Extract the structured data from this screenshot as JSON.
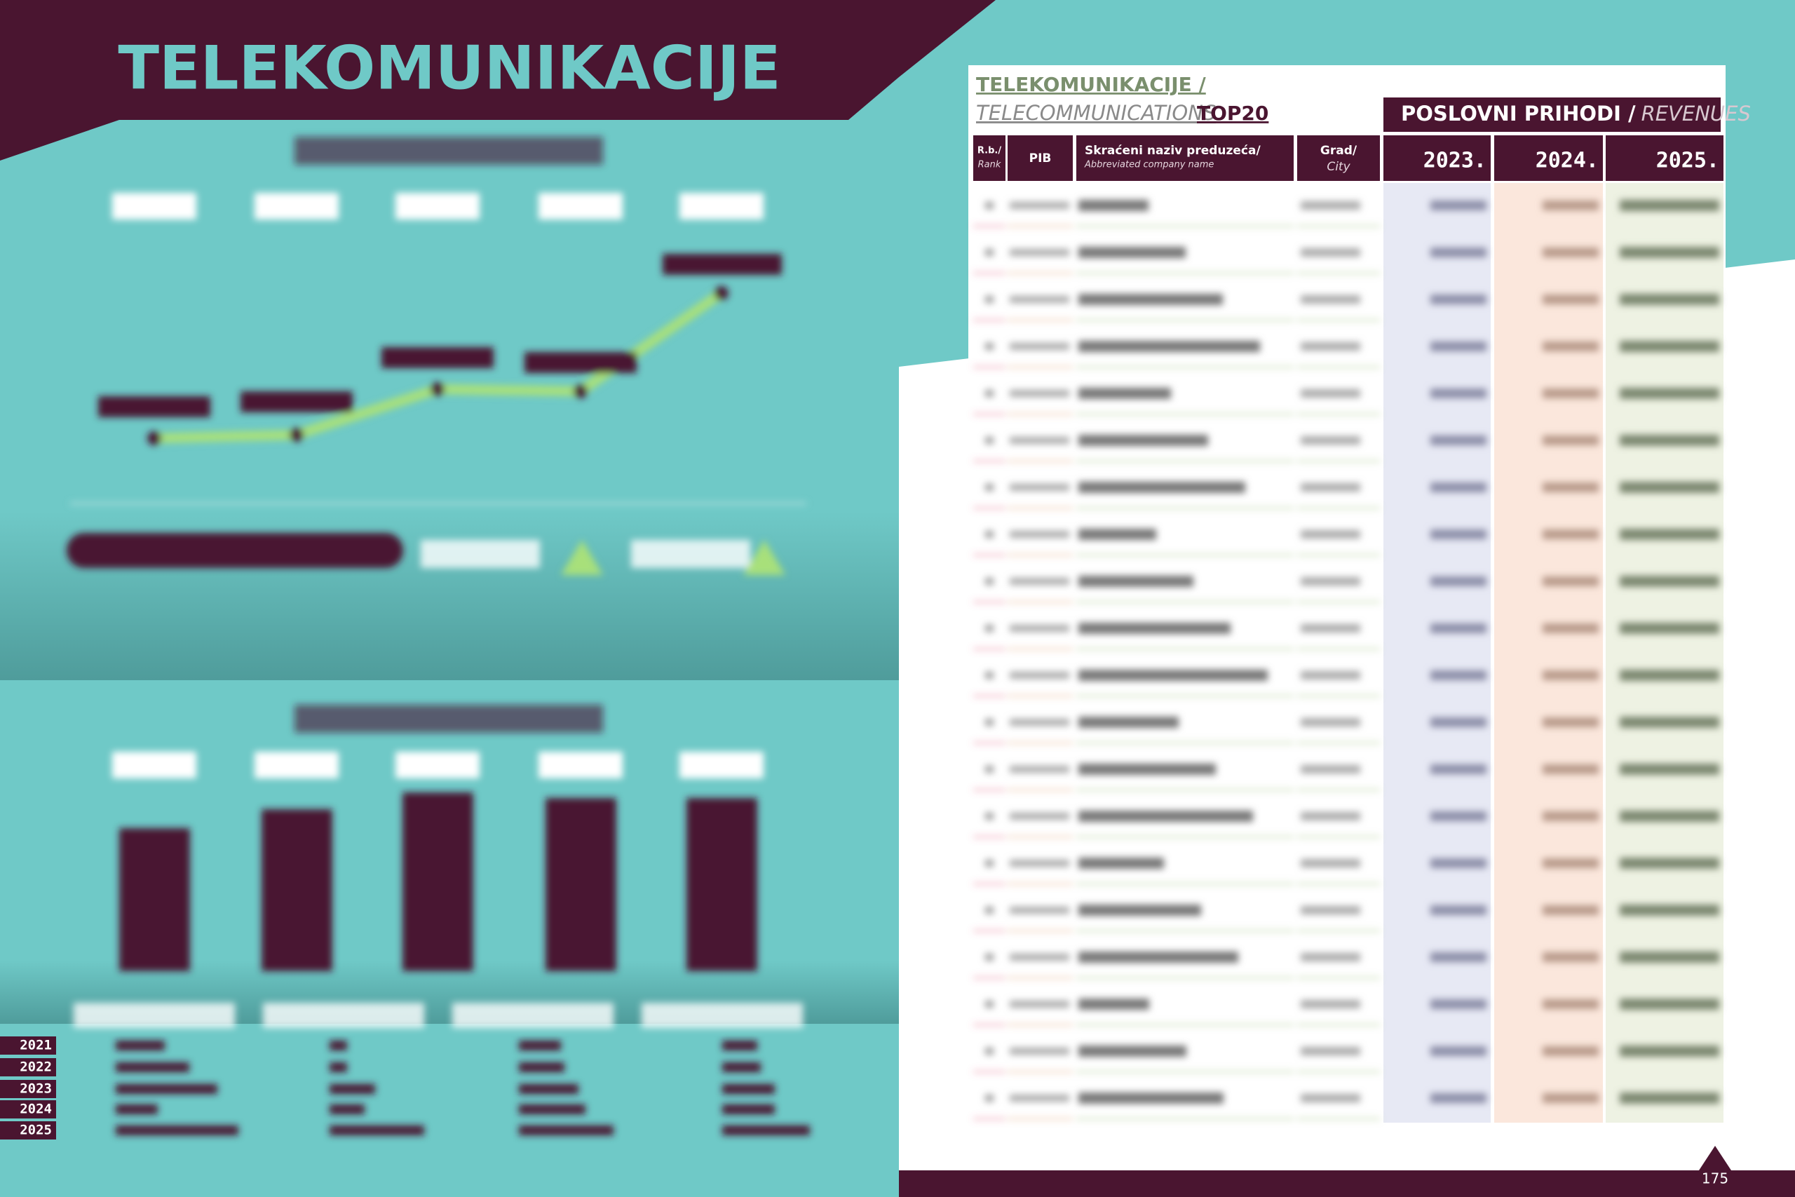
{
  "left_page": {
    "title": "TELEKOMUNIKACIJE",
    "year_labels": [
      "2021",
      "2022",
      "2023",
      "2024",
      "2025"
    ]
  },
  "right_page": {
    "header": {
      "title": "TELEKOMUNIKACIJE /",
      "subtitle": "TELECOMMUNICATIONS",
      "badge": "TOP20",
      "section": "POSLOVNI PRIHODI /",
      "section_en": "REVENUES"
    },
    "table": {
      "columns": [
        {
          "label": "R.b./",
          "sub": "Rank"
        },
        {
          "label": "PIB"
        },
        {
          "label": "Skraćeni naziv preduzeća/",
          "sub": "Abbreviated company name"
        },
        {
          "label": "Grad/",
          "sub": "City"
        },
        {
          "label": "2023."
        },
        {
          "label": "2024."
        },
        {
          "label": "2025."
        }
      ]
    },
    "page_number": "175"
  }
}
